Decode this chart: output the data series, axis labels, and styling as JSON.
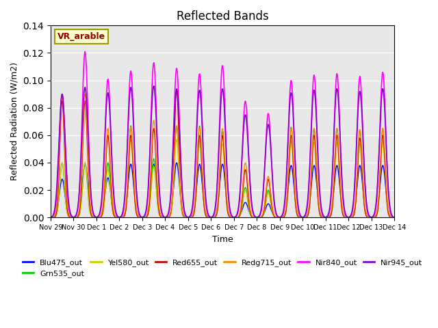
{
  "title": "Reflected Bands",
  "xlabel": "Time",
  "ylabel": "Reflected Radiation (W/m2)",
  "annotation": "VR_arable",
  "ylim": [
    0,
    0.14
  ],
  "bg_color": "#e8e8e8",
  "series": [
    {
      "label": "Blu475_out",
      "color": "#0000ff"
    },
    {
      "label": "Grn535_out",
      "color": "#00cc00"
    },
    {
      "label": "Yel580_out",
      "color": "#cccc00"
    },
    {
      "label": "Red655_out",
      "color": "#cc0000"
    },
    {
      "label": "Redg715_out",
      "color": "#ff8800"
    },
    {
      "label": "Nir840_out",
      "color": "#ff00ff"
    },
    {
      "label": "Nir945_out",
      "color": "#8800cc"
    }
  ],
  "xtick_labels": [
    "Nov 29",
    "Nov 30",
    "Dec 1",
    "Dec 2",
    "Dec 3",
    "Dec 4",
    "Dec 5",
    "Dec 6",
    "Dec 7",
    "Dec 8",
    "Dec 9",
    "Dec 10",
    "Dec 11",
    "Dec 12",
    "Dec 13",
    "Dec 14"
  ],
  "num_days": 15,
  "peak_heights_nir840": [
    0.09,
    0.121,
    0.101,
    0.107,
    0.113,
    0.109,
    0.105,
    0.111,
    0.085,
    0.076,
    0.1,
    0.104,
    0.105,
    0.103,
    0.106
  ],
  "peak_heights_nir945": [
    0.09,
    0.095,
    0.091,
    0.095,
    0.096,
    0.094,
    0.093,
    0.094,
    0.075,
    0.068,
    0.091,
    0.093,
    0.094,
    0.092,
    0.094
  ],
  "peak_heights_redg715": [
    0.09,
    0.09,
    0.065,
    0.066,
    0.071,
    0.067,
    0.066,
    0.065,
    0.04,
    0.03,
    0.065,
    0.065,
    0.065,
    0.064,
    0.065
  ],
  "peak_heights_red655": [
    0.085,
    0.085,
    0.06,
    0.06,
    0.065,
    0.093,
    0.06,
    0.06,
    0.035,
    0.028,
    0.06,
    0.06,
    0.06,
    0.058,
    0.06
  ],
  "peak_heights_grn535": [
    0.04,
    0.04,
    0.04,
    0.067,
    0.043,
    0.067,
    0.067,
    0.063,
    0.022,
    0.02,
    0.066,
    0.065,
    0.065,
    0.064,
    0.065
  ],
  "peak_heights_yel580": [
    0.04,
    0.04,
    0.035,
    0.057,
    0.037,
    0.057,
    0.057,
    0.054,
    0.02,
    0.018,
    0.056,
    0.055,
    0.055,
    0.054,
    0.055
  ],
  "peak_heights_blu475": [
    0.028,
    0.039,
    0.029,
    0.039,
    0.039,
    0.04,
    0.039,
    0.039,
    0.011,
    0.01,
    0.038,
    0.038,
    0.038,
    0.038,
    0.038
  ]
}
